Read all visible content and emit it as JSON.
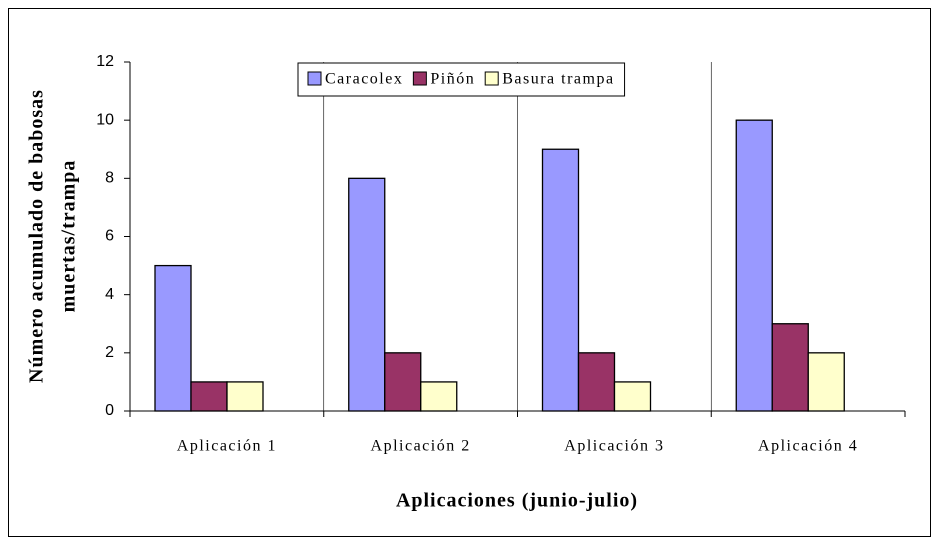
{
  "chart_data": {
    "type": "bar",
    "ylabel": [
      "Número acumulado de babosas",
      "muertas/trampa"
    ],
    "xlabel": "Aplicaciones (junio-julio)",
    "categories": [
      "Aplicación 1",
      "Aplicación 2",
      "Aplicación 3",
      "Aplicación 4"
    ],
    "series": [
      {
        "name": "Caracolex",
        "color": "#9999ff",
        "values": [
          5,
          8,
          9,
          10
        ]
      },
      {
        "name": "Piñón",
        "color": "#993366",
        "values": [
          1,
          2,
          2,
          3
        ]
      },
      {
        "name": "Basura trampa",
        "color": "#ffffcc",
        "values": [
          1,
          1,
          1,
          2
        ]
      }
    ],
    "ylim": [
      0,
      12
    ],
    "yticks": [
      0,
      2,
      4,
      6,
      8,
      10,
      12
    ],
    "legend": "top"
  }
}
